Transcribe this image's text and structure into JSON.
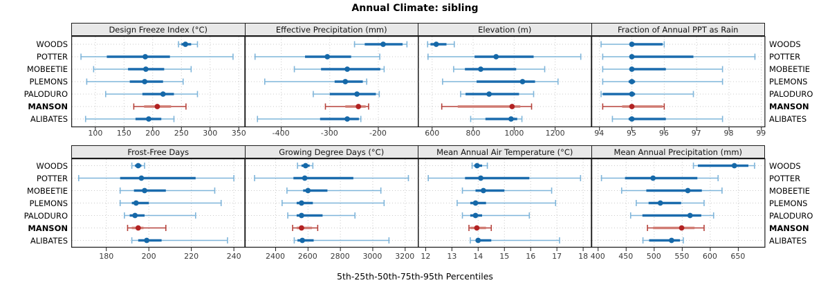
{
  "title": "Annual Climate: sibling",
  "caption": "5th-25th-50th-75th-95th Percentiles",
  "sites": [
    {
      "label": "WOODS",
      "emphasis": false
    },
    {
      "label": "POTTER",
      "emphasis": false
    },
    {
      "label": "MOBEETIE",
      "emphasis": false
    },
    {
      "label": "PLEMONS",
      "emphasis": false
    },
    {
      "label": "PALODURO",
      "emphasis": false
    },
    {
      "label": "MANSON",
      "emphasis": true
    },
    {
      "label": "ALIBATES",
      "emphasis": false
    }
  ],
  "colors": {
    "blue_range_line": "#7FB5DA",
    "blue_iqr_line": "#1A6BAD",
    "blue_median_dot": "#1568A8",
    "red_range_line": "#B5413A",
    "red_iqr_line": "#D07B72",
    "red_median_dot": "#B22222",
    "gridline": "#C9C9C9",
    "panel_border": "#1A1A1A",
    "strip_bg": "#E8E8E8"
  },
  "chart_data": [
    {
      "id": "design-freeze-index",
      "type": "scatter",
      "mark": "median-dot-with-5-25-75-95-percentile-whiskers",
      "title": "Design Freeze Index (°C)",
      "row": 0,
      "col": 0,
      "xlim": [
        58,
        360
      ],
      "ticks": [
        100,
        150,
        200,
        250,
        300,
        350
      ],
      "values": {
        "WOODS": [
          245,
          250,
          257,
          267,
          278
        ],
        "POTTER": [
          75,
          120,
          187,
          230,
          340
        ],
        "MOBEETIE": [
          97,
          157,
          188,
          220,
          267
        ],
        "PLEMONS": [
          85,
          160,
          186,
          218,
          253
        ],
        "PALODURO": [
          118,
          182,
          218,
          237,
          278
        ],
        "MANSON": [
          167,
          185,
          208,
          232,
          258
        ],
        "ALIBATES": [
          83,
          170,
          193,
          215,
          237
        ]
      }
    },
    {
      "id": "effective-precipitation",
      "type": "scatter",
      "mark": "median-dot-with-5-25-75-95-percentile-whiskers",
      "title": "Effective Precipitation (mm)",
      "row": 0,
      "col": 1,
      "xlim": [
        -475,
        -118
      ],
      "ticks": [
        -400,
        -300,
        -200
      ],
      "values": {
        "WOODS": [
          -249,
          -228,
          -190,
          -150,
          -141
        ],
        "POTTER": [
          -454,
          -351,
          -305,
          -256,
          -197
        ],
        "MOBEETIE": [
          -373,
          -318,
          -264,
          -196,
          -188
        ],
        "PLEMONS": [
          -434,
          -290,
          -268,
          -232,
          -224
        ],
        "PALODURO": [
          -334,
          -300,
          -244,
          -205,
          -198
        ],
        "MANSON": [
          -309,
          -268,
          -241,
          -226,
          -220
        ],
        "ALIBATES": [
          -449,
          -320,
          -264,
          -240,
          -236
        ]
      }
    },
    {
      "id": "elevation",
      "type": "scatter",
      "mark": "median-dot-with-5-25-75-95-percentile-whiskers",
      "title": "Elevation (m)",
      "row": 0,
      "col": 2,
      "xlim": [
        530,
        1375
      ],
      "ticks": [
        600,
        800,
        1000,
        1200
      ],
      "values": {
        "WOODS": [
          578,
          592,
          620,
          670,
          708
        ],
        "POTTER": [
          580,
          807,
          912,
          1095,
          1325
        ],
        "MOBEETIE": [
          705,
          760,
          837,
          1010,
          1149
        ],
        "PLEMONS": [
          651,
          817,
          1041,
          1102,
          1214
        ],
        "PALODURO": [
          739,
          763,
          878,
          1024,
          1095
        ],
        "MANSON": [
          647,
          725,
          990,
          1030,
          1085
        ],
        "ALIBATES": [
          788,
          860,
          985,
          1015,
          1038
        ]
      }
    },
    {
      "id": "fraction-ppt-rain",
      "type": "scatter",
      "mark": "median-dot-with-5-25-75-95-percentile-whiskers",
      "title": "Fraction of Annual PPT as Rain",
      "row": 0,
      "col": 3,
      "xlim": [
        93.75,
        99.1
      ],
      "ticks": [
        94,
        95,
        96,
        97,
        98,
        99
      ],
      "values": {
        "WOODS": [
          94.05,
          94.95,
          95.0,
          95.95,
          96.0
        ],
        "POTTER": [
          94.1,
          94.95,
          95.0,
          96.9,
          98.8
        ],
        "MOBEETIE": [
          94.1,
          94.95,
          95.0,
          96.05,
          97.8
        ],
        "PLEMONS": [
          94.1,
          94.9,
          95.0,
          95.1,
          97.8
        ],
        "PALODURO": [
          94.05,
          94.1,
          95.0,
          95.1,
          96.9
        ],
        "MANSON": [
          94.1,
          94.7,
          95.0,
          95.95,
          96.0
        ],
        "ALIBATES": [
          94.4,
          94.9,
          95.0,
          96.05,
          97.8
        ]
      }
    },
    {
      "id": "frost-free-days",
      "type": "scatter",
      "mark": "median-dot-with-5-25-75-95-percentile-whiskers",
      "title": "Frost-Free Days",
      "row": 1,
      "col": 0,
      "xlim": [
        163.5,
        245
      ],
      "ticks": [
        180,
        200,
        220,
        240
      ],
      "values": {
        "WOODS": [
          192,
          193.5,
          195,
          196.5,
          198
        ],
        "POTTER": [
          167,
          186.5,
          196.5,
          222,
          240
        ],
        "MOBEETIE": [
          186.5,
          193,
          198,
          208,
          231
        ],
        "PLEMONS": [
          186.5,
          192,
          194,
          200,
          234
        ],
        "PALODURO": [
          188.5,
          191,
          193.5,
          198,
          222
        ],
        "MANSON": [
          190,
          192,
          195,
          197.5,
          208
        ],
        "ALIBATES": [
          192,
          195,
          199,
          206,
          237
        ]
      }
    },
    {
      "id": "growing-degree-days",
      "type": "scatter",
      "mark": "median-dot-with-5-25-75-95-percentile-whiskers",
      "title": "Growing Degree Days (°C)",
      "row": 1,
      "col": 1,
      "xlim": [
        2210,
        3280
      ],
      "ticks": [
        2400,
        2600,
        2800,
        3000,
        3200
      ],
      "values": {
        "WOODS": [
          2535,
          2560,
          2585,
          2610,
          2630
        ],
        "POTTER": [
          2270,
          2510,
          2580,
          2880,
          3220
        ],
        "MOBEETIE": [
          2470,
          2570,
          2600,
          2720,
          3050
        ],
        "PLEMONS": [
          2440,
          2530,
          2560,
          2630,
          3070
        ],
        "PALODURO": [
          2475,
          2530,
          2560,
          2690,
          2890
        ],
        "MANSON": [
          2505,
          2530,
          2560,
          2625,
          2660
        ],
        "ALIBATES": [
          2515,
          2535,
          2565,
          2635,
          3100
        ]
      }
    },
    {
      "id": "mean-annual-air-temperature",
      "type": "scatter",
      "mark": "median-dot-with-5-25-75-95-percentile-whiskers",
      "title": "Mean Annual Air Temperature (°C)",
      "row": 1,
      "col": 2,
      "xlim": [
        11.7,
        18.3
      ],
      "ticks": [
        12,
        13,
        14,
        15,
        16,
        17,
        18
      ],
      "values": {
        "WOODS": [
          13.77,
          13.85,
          13.96,
          14.15,
          14.35
        ],
        "POTTER": [
          12.1,
          13.5,
          14.1,
          15.95,
          17.9
        ],
        "MOBEETIE": [
          13.4,
          13.9,
          14.2,
          15.0,
          16.8
        ],
        "PLEMONS": [
          13.2,
          13.7,
          13.9,
          14.3,
          16.95
        ],
        "PALODURO": [
          13.4,
          13.7,
          13.9,
          14.15,
          15.95
        ],
        "MANSON": [
          13.65,
          13.7,
          13.95,
          14.3,
          14.5
        ],
        "ALIBATES": [
          13.7,
          13.9,
          14.0,
          14.5,
          17.1
        ]
      }
    },
    {
      "id": "mean-annual-precipitation",
      "type": "scatter",
      "mark": "median-dot-with-5-25-75-95-percentile-whiskers",
      "title": "Mean Annual Precipitation (mm)",
      "row": 1,
      "col": 3,
      "xlim": [
        388,
        697
      ],
      "ticks": [
        400,
        450,
        500,
        550,
        600,
        650
      ],
      "values": {
        "WOODS": [
          570,
          578,
          643,
          668,
          679
        ],
        "POTTER": [
          406,
          448,
          498,
          577,
          614
        ],
        "MOBEETIE": [
          442,
          486,
          560,
          585,
          621
        ],
        "PLEMONS": [
          468,
          490,
          511,
          548,
          589
        ],
        "PALODURO": [
          458,
          479,
          564,
          584,
          606
        ],
        "MANSON": [
          488,
          498,
          549,
          572,
          589
        ],
        "ALIBATES": [
          480,
          491,
          531,
          546,
          552
        ]
      }
    }
  ]
}
